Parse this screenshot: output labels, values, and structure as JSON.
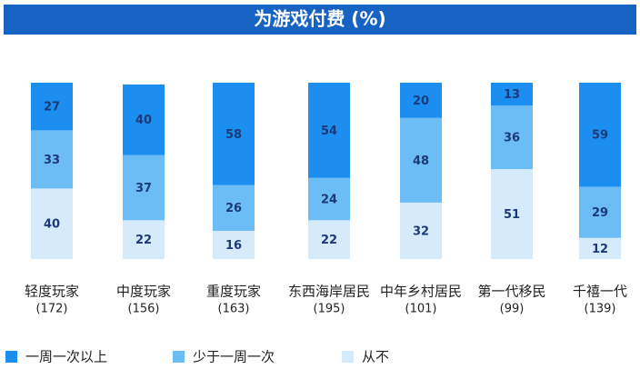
{
  "chart_data": {
    "type": "stacked-bar",
    "title": "为游戏付费 (%)",
    "categories": [
      "轻度玩家",
      "中度玩家",
      "重度玩家",
      "东西海岸居民",
      "中年乡村居民",
      "第一代移民",
      "千禧一代"
    ],
    "category_notes": [
      "(172)",
      "(156)",
      "(163)",
      "(195)",
      "(101)",
      "(99)",
      "(139)"
    ],
    "ylim": [
      0,
      100
    ],
    "series": [
      {
        "name": "从不",
        "color": "#d5ebfb",
        "values": [
          40,
          22,
          16,
          22,
          32,
          51,
          12
        ]
      },
      {
        "name": "少于一周一次",
        "color": "#6cbdf5",
        "values": [
          33,
          37,
          26,
          24,
          48,
          36,
          29
        ]
      },
      {
        "name": "一周一次以上",
        "color": "#1c8ef0",
        "values": [
          27,
          40,
          58,
          54,
          20,
          13,
          59
        ]
      }
    ],
    "legend_order": [
      2,
      1,
      0
    ]
  }
}
